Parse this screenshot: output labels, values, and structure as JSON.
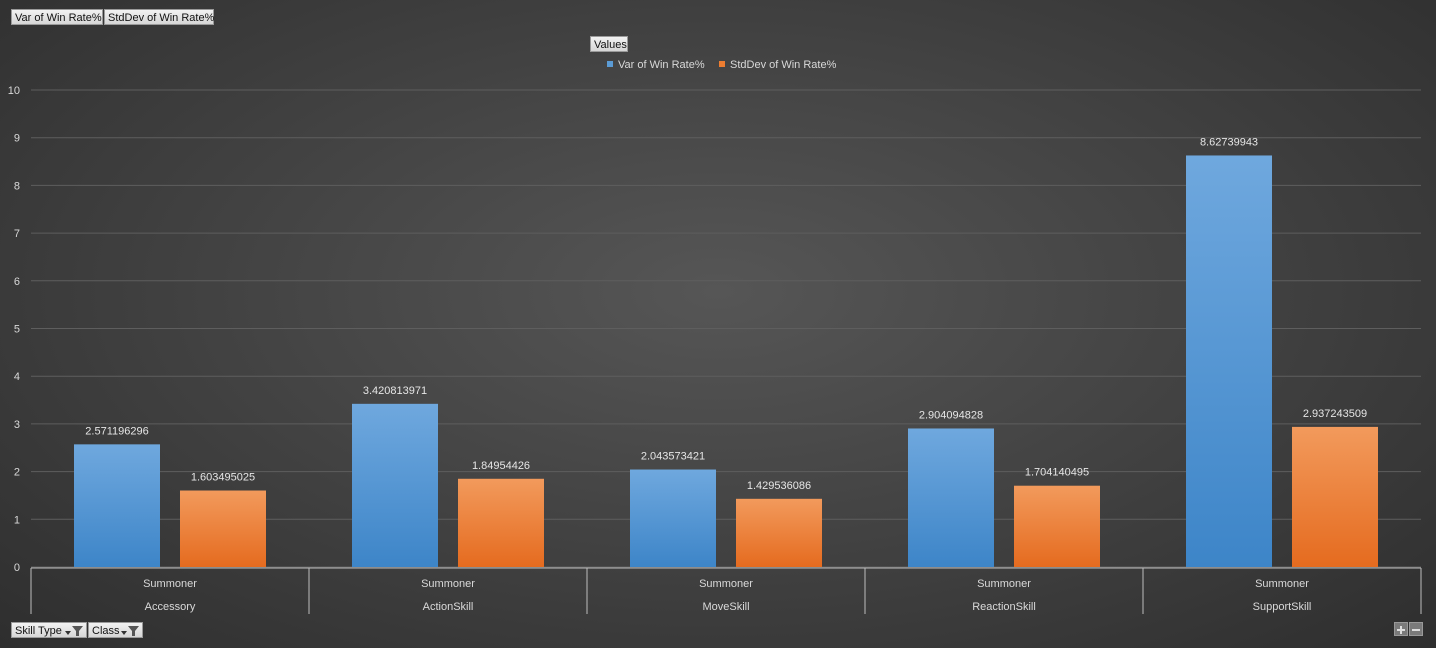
{
  "field_buttons": {
    "var_label": "Var of Win Rate%",
    "std_label": "StdDev of Win Rate%",
    "values_label": "Values",
    "skill_type_label": "Skill Type",
    "class_label": "Class"
  },
  "chart_data": {
    "type": "bar",
    "title": "",
    "xlabel": "",
    "ylabel": "",
    "ylim": [
      0,
      10
    ],
    "yticks": [
      0,
      1,
      2,
      3,
      4,
      5,
      6,
      7,
      8,
      9,
      10
    ],
    "grid": true,
    "legend_position": "top-center",
    "categories": [
      {
        "outer": "Accessory",
        "inner": "Summoner"
      },
      {
        "outer": "ActionSkill",
        "inner": "Summoner"
      },
      {
        "outer": "MoveSkill",
        "inner": "Summoner"
      },
      {
        "outer": "ReactionSkill",
        "inner": "Summoner"
      },
      {
        "outer": "SupportSkill",
        "inner": "Summoner"
      }
    ],
    "series": [
      {
        "name": "Var of Win Rate%",
        "color": "#5b9bd5",
        "values": [
          2.571196296,
          3.420813971,
          2.043573421,
          2.904094828,
          8.62739943
        ],
        "labels": [
          "2.571196296",
          "3.420813971",
          "2.043573421",
          "2.904094828",
          "8.62739943"
        ]
      },
      {
        "name": "StdDev of Win Rate%",
        "color": "#ed7d31",
        "values": [
          1.603495025,
          1.84954426,
          1.429536086,
          1.704140495,
          2.937243509
        ],
        "labels": [
          "1.603495025",
          "1.84954426",
          "1.429536086",
          "1.704140495",
          "2.937243509"
        ]
      }
    ]
  }
}
